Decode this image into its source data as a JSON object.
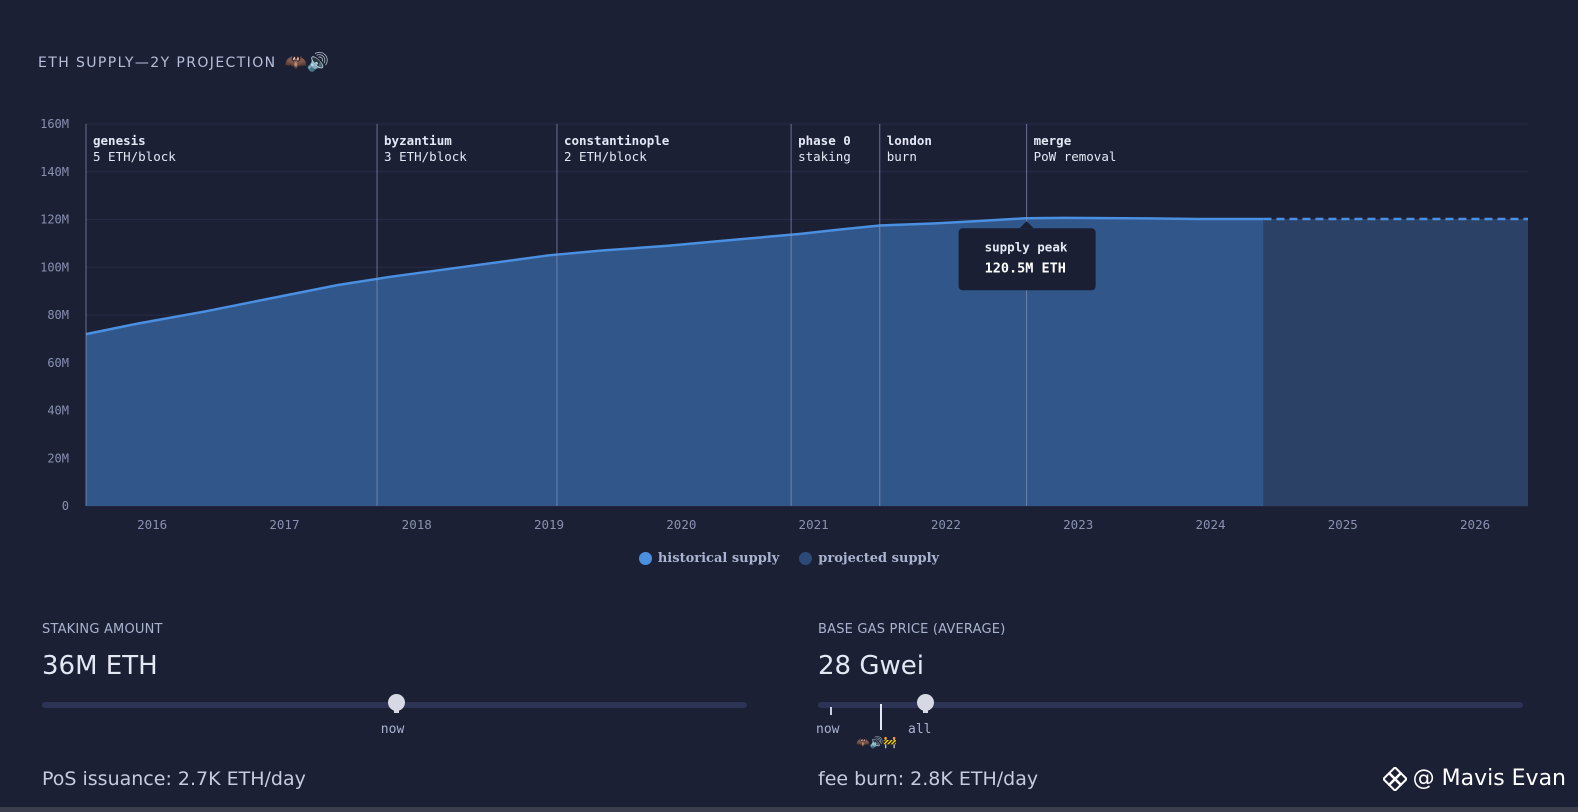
{
  "header": {
    "title": "ETH SUPPLY—2Y PROJECTION",
    "emoji": "🦇🔊"
  },
  "chart_data": {
    "type": "area",
    "title": "ETH SUPPLY—2Y PROJECTION",
    "xlabel": "",
    "ylabel": "",
    "xlim": [
      2015.6,
      2026.5
    ],
    "ylim": [
      0,
      160
    ],
    "y_unit": "M",
    "y_ticks": [
      "0",
      "20M",
      "40M",
      "60M",
      "80M",
      "100M",
      "120M",
      "140M",
      "160M"
    ],
    "x_ticks": [
      "2016",
      "2017",
      "2018",
      "2019",
      "2020",
      "2021",
      "2022",
      "2023",
      "2024",
      "2025",
      "2026"
    ],
    "grid": true,
    "legend_position": "bottom-center",
    "series": [
      {
        "name": "historical supply",
        "color": "#4a8fe0",
        "x": [
          2015.6,
          2016.0,
          2016.5,
          2017.0,
          2017.5,
          2017.9,
          2018.5,
          2019.1,
          2019.5,
          2020.0,
          2020.5,
          2021.0,
          2021.3,
          2021.6,
          2022.0,
          2022.3,
          2022.7,
          2023.0,
          2023.3,
          2023.7,
          2024.0,
          2024.5
        ],
        "y": [
          72,
          76.5,
          81.5,
          87,
          92.5,
          96,
          100.5,
          105,
          107,
          109,
          111.5,
          114,
          115.8,
          117.5,
          118.3,
          119.2,
          120.5,
          120.7,
          120.6,
          120.4,
          120.2,
          120.2
        ]
      },
      {
        "name": "projected supply",
        "color": "#2c4a78",
        "x": [
          2024.5,
          2025.0,
          2025.5,
          2026.0,
          2026.5
        ],
        "y": [
          120.2,
          120.2,
          120.2,
          120.2,
          120.2
        ]
      }
    ],
    "events": [
      {
        "x": 2015.6,
        "title": "genesis",
        "subtitle": "5 ETH/block"
      },
      {
        "x": 2017.8,
        "title": "byzantium",
        "subtitle": "3 ETH/block"
      },
      {
        "x": 2019.16,
        "title": "constantinople",
        "subtitle": "2 ETH/block"
      },
      {
        "x": 2020.93,
        "title": "phase 0",
        "subtitle": "staking"
      },
      {
        "x": 2021.6,
        "title": "london",
        "subtitle": "burn"
      },
      {
        "x": 2022.71,
        "title": "merge",
        "subtitle": "PoW removal"
      }
    ],
    "annotation": {
      "x": 2022.71,
      "y": 120.5,
      "title": "supply peak",
      "value": "120.5M ETH"
    }
  },
  "legend": [
    {
      "label": "historical supply",
      "color": "#4a8fe0"
    },
    {
      "label": "projected supply",
      "color": "#2c4a78"
    }
  ],
  "staking": {
    "label": "STAKING AMOUNT",
    "value": "36M ETH",
    "slider_fraction": 0.504,
    "now_label": "now",
    "footer": "PoS issuance: 2.7K ETH/day"
  },
  "gas": {
    "label": "BASE GAS PRICE (AVERAGE)",
    "value": "28 Gwei",
    "slider_fraction": 0.152,
    "now_label": "now",
    "all_label": "all",
    "marker_emoji": "🦇🔊🚧",
    "footer": "fee burn: 2.8K ETH/day"
  },
  "watermark": {
    "text": "@ Mavis Evan"
  }
}
